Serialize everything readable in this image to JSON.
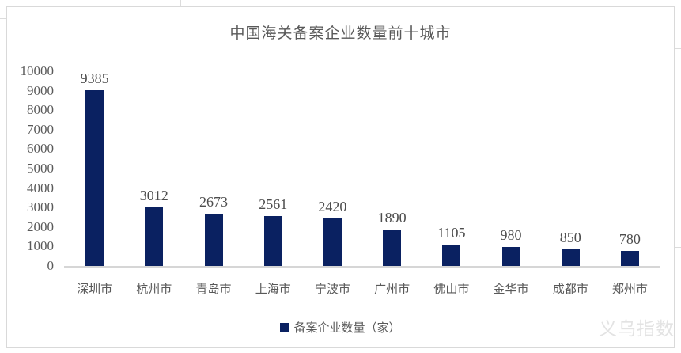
{
  "title": "中国海关备案企业数量前十城市",
  "legend": {
    "label": "备案企业数量（家）"
  },
  "watermark": "义乌指数",
  "colors": {
    "bar": "#0a2161",
    "title_text": "#595959",
    "axis_text": "#595959",
    "value_label_text": "#4d4d4d",
    "chart_border": "#d9d9d9",
    "axis_line": "#d6d6d6",
    "watermark_text": "#e3e3e3"
  },
  "chart_data": {
    "type": "bar",
    "title": "中国海关备案企业数量前十城市",
    "categories": [
      "深圳市",
      "杭州市",
      "青岛市",
      "上海市",
      "宁波市",
      "广州市",
      "佛山市",
      "金华市",
      "成都市",
      "郑州市"
    ],
    "values": [
      9385,
      3012,
      2673,
      2561,
      2420,
      1890,
      1105,
      980,
      850,
      780
    ],
    "series_name": "备案企业数量（家）",
    "ylabel": "",
    "xlabel": "",
    "ylim": [
      0,
      10000
    ],
    "ytick_step": 1000,
    "ytick_labels": [
      "0",
      "1000",
      "2000",
      "3000",
      "4000",
      "5000",
      "6000",
      "7000",
      "8000",
      "9000",
      "10000"
    ],
    "grid": false,
    "data_labels": true,
    "legend_position": "bottom"
  }
}
